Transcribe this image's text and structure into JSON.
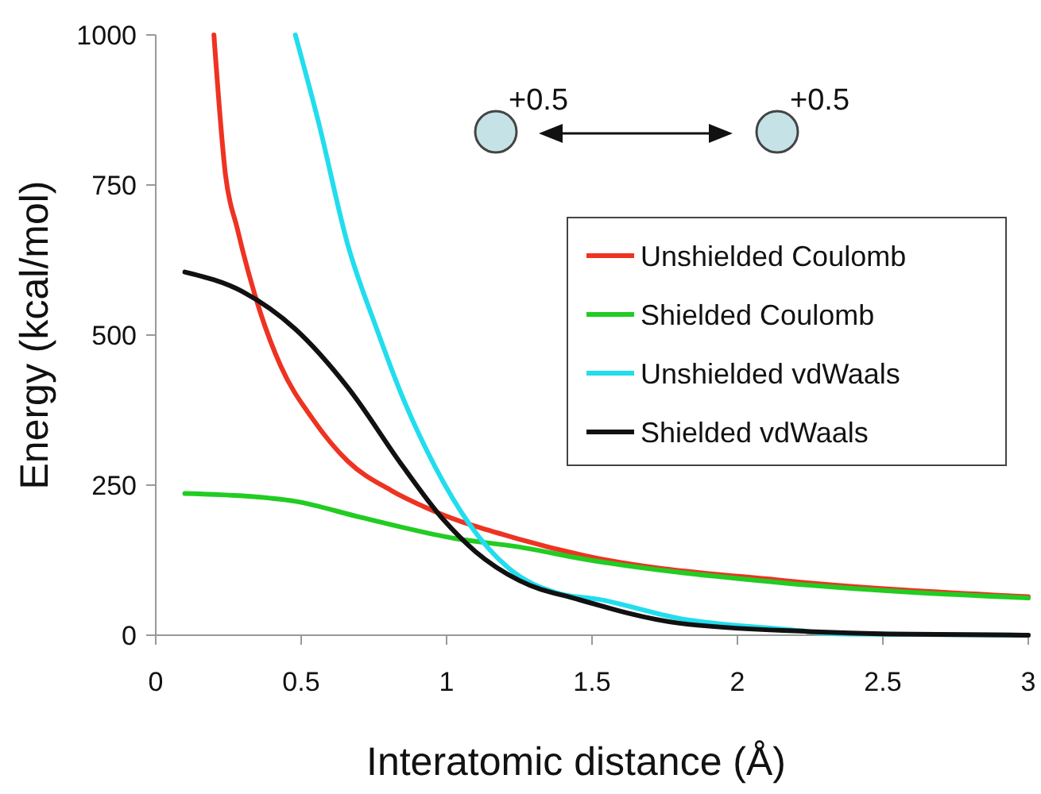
{
  "chart_data": {
    "type": "line",
    "xlabel": "Interatomic distance (Å)",
    "ylabel": "Energy (kcal/mol)",
    "xlim": [
      0,
      3
    ],
    "ylim": [
      0,
      1000
    ],
    "xticks": [
      0,
      0.5,
      1,
      1.5,
      2,
      2.5,
      3
    ],
    "yticks": [
      0,
      250,
      500,
      750,
      1000
    ],
    "grid": false,
    "legend": "right",
    "marker": "none",
    "line_style": "solid",
    "annotations": [
      "+0.5",
      "+0.5"
    ],
    "series": [
      {
        "name": "Unshielded Coulomb",
        "color": "#ee3322",
        "x": [
          0.2,
          0.24,
          0.28,
          0.36,
          0.43,
          0.54,
          0.66,
          0.81,
          0.96,
          1.25,
          1.47,
          2.16,
          3
        ],
        "values": [
          1000,
          766,
          678,
          537,
          448,
          360,
          290,
          241,
          206,
          160,
          133,
          91,
          64
        ]
      },
      {
        "name": "Shielded Coulomb",
        "color": "#22cc22",
        "x": [
          0.1,
          0.3,
          0.48,
          0.7,
          1.03,
          1.25,
          1.47,
          2.16,
          3
        ],
        "values": [
          236,
          232,
          223,
          197,
          161,
          147,
          127,
          87,
          62
        ]
      },
      {
        "name": "Unshielded vdWaals",
        "color": "#22ddee",
        "x": [
          0.48,
          0.56,
          0.66,
          0.76,
          0.85,
          0.96,
          1.08,
          1.21,
          1.39,
          1.52,
          1.8,
          2.16,
          2.36,
          3
        ],
        "values": [
          1000,
          854,
          651,
          510,
          395,
          281,
          184,
          113,
          69,
          60,
          28,
          10,
          2,
          0
        ]
      },
      {
        "name": "Shielded vdWaals",
        "color": "#111111",
        "x": [
          0.1,
          0.3,
          0.48,
          0.66,
          0.85,
          0.99,
          1.1,
          1.25,
          1.45,
          1.8,
          2.25,
          2.52,
          3
        ],
        "values": [
          605,
          572,
          510,
          413,
          281,
          192,
          139,
          91,
          60,
          20,
          6,
          2,
          0
        ]
      }
    ]
  }
}
